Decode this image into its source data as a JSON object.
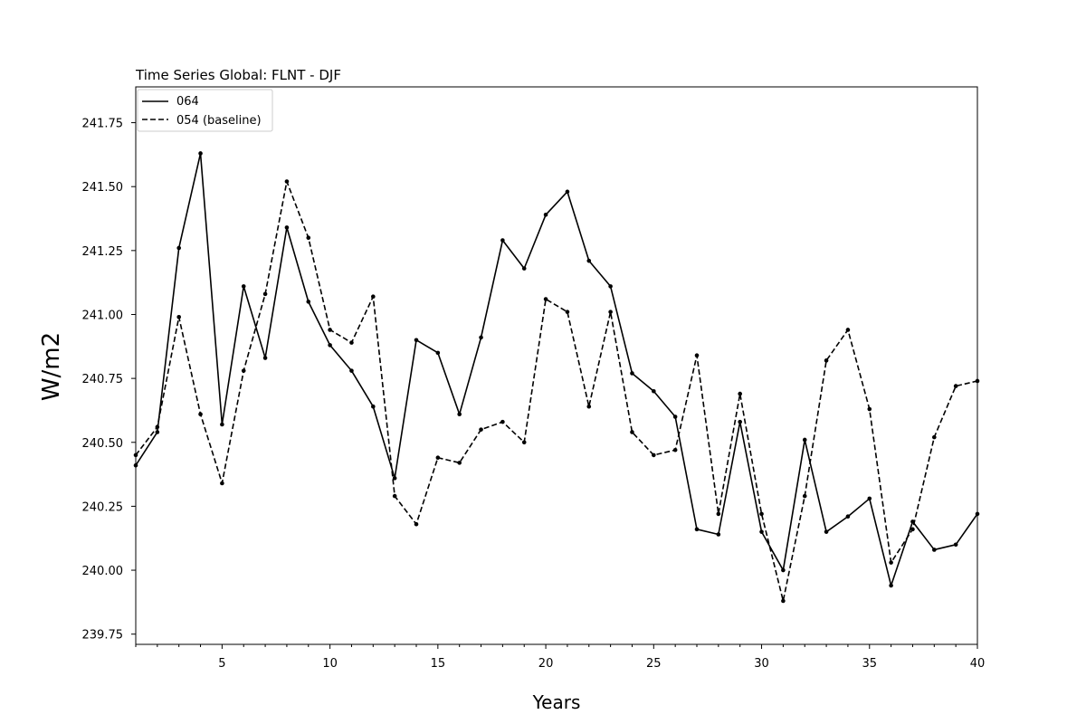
{
  "chart_data": {
    "type": "line",
    "title": "Time Series Global: FLNT - DJF",
    "xlabel": "Years",
    "ylabel": "W/m2",
    "xlim": [
      1,
      40
    ],
    "ylim": [
      239.71,
      241.89
    ],
    "x_ticks": [
      5,
      10,
      15,
      20,
      25,
      30,
      35,
      40
    ],
    "y_ticks": [
      239.75,
      240.0,
      240.25,
      240.5,
      240.75,
      241.0,
      241.25,
      241.5,
      241.75
    ],
    "y_tick_labels": [
      "239.75",
      "240.00",
      "240.25",
      "240.50",
      "240.75",
      "241.00",
      "241.25",
      "241.50",
      "241.75"
    ],
    "x_tick_labels": [
      "5",
      "10",
      "15",
      "20",
      "25",
      "30",
      "35",
      "40"
    ],
    "grid": false,
    "legend": "top-left",
    "x": [
      1,
      2,
      3,
      4,
      5,
      6,
      7,
      8,
      9,
      10,
      11,
      12,
      13,
      14,
      15,
      16,
      17,
      18,
      19,
      20,
      21,
      22,
      23,
      24,
      25,
      26,
      27,
      28,
      29,
      30,
      31,
      32,
      33,
      34,
      35,
      36,
      37,
      38,
      39,
      40
    ],
    "series": [
      {
        "name": "064",
        "style": "solid",
        "color": "#000000",
        "values": [
          240.41,
          240.54,
          241.26,
          241.63,
          240.57,
          241.11,
          240.83,
          241.34,
          241.05,
          240.88,
          240.78,
          240.64,
          240.36,
          240.9,
          240.85,
          240.61,
          240.91,
          241.29,
          241.18,
          241.39,
          241.48,
          241.21,
          241.11,
          240.77,
          240.7,
          240.6,
          240.16,
          240.14,
          240.58,
          240.15,
          240.0,
          240.51,
          240.15,
          240.21,
          240.28,
          239.94,
          240.19,
          240.08,
          240.1,
          240.22
        ]
      },
      {
        "name": "054 (baseline)",
        "style": "dashed",
        "color": "#000000",
        "values": [
          240.45,
          240.56,
          240.99,
          240.61,
          240.34,
          240.78,
          241.08,
          241.52,
          241.3,
          240.94,
          240.89,
          241.07,
          240.29,
          240.18,
          240.44,
          240.42,
          240.55,
          240.58,
          240.5,
          241.06,
          241.01,
          240.64,
          241.01,
          240.54,
          240.45,
          240.47,
          240.84,
          240.22,
          240.69,
          240.22,
          239.88,
          240.29,
          240.82,
          240.94,
          240.63,
          240.03,
          240.16,
          240.52,
          240.72,
          240.74
        ]
      }
    ]
  }
}
